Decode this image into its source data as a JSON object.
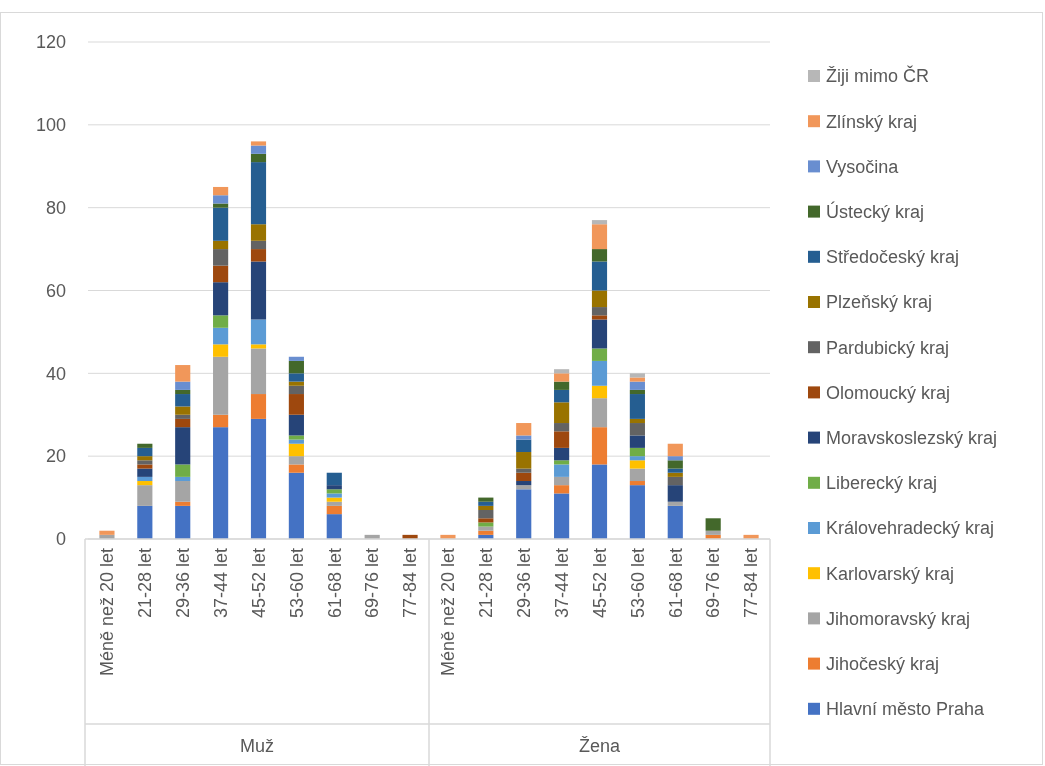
{
  "chart_data": {
    "type": "bar",
    "stacked": true,
    "categories": [
      "Méně než 20 let",
      "21-28 let",
      "29-36 let",
      "37-44 let",
      "45-52 let",
      "53-60 let",
      "61-68 let",
      "69-76 let",
      "77-84 let",
      "Méně než 20 let",
      "21-28 let",
      "29-36 let",
      "37-44 let",
      "45-52 let",
      "53-60 let",
      "61-68 let",
      "69-76 let",
      "77-84 let"
    ],
    "annotations": [
      "Muž",
      "Žena"
    ],
    "ylim": [
      0,
      120
    ],
    "yticks": [
      0,
      20,
      40,
      60,
      80,
      100,
      120
    ],
    "grid": "y",
    "legend": "right",
    "series": [
      {
        "name": "Hlavní město Praha",
        "color": "#4472c4",
        "values": [
          0,
          8,
          8,
          27,
          29,
          16,
          6,
          0,
          0,
          0,
          1,
          12,
          11,
          18,
          13,
          8,
          0,
          0
        ]
      },
      {
        "name": "Jihočeský kraj",
        "color": "#ed7d31",
        "values": [
          0,
          0,
          1,
          3,
          6,
          2,
          2,
          0,
          0,
          0,
          1,
          0,
          2,
          9,
          1,
          0,
          1,
          0
        ]
      },
      {
        "name": "Jihomoravský kraj",
        "color": "#a5a5a5",
        "values": [
          1,
          5,
          5,
          14,
          11,
          2,
          1,
          1,
          0,
          0,
          1,
          1,
          2,
          7,
          3,
          1,
          1,
          0
        ]
      },
      {
        "name": "Karlovarský kraj",
        "color": "#ffc000",
        "values": [
          0,
          1,
          0,
          3,
          1,
          3,
          1,
          0,
          0,
          0,
          0,
          0,
          0,
          3,
          2,
          0,
          0,
          0
        ]
      },
      {
        "name": "Královehradecký kraj",
        "color": "#5b9bd5",
        "values": [
          0,
          1,
          1,
          4,
          6,
          1,
          1,
          0,
          0,
          0,
          0,
          0,
          3,
          6,
          1,
          0,
          0,
          0
        ]
      },
      {
        "name": "Liberecký kraj",
        "color": "#70ad47",
        "values": [
          0,
          0,
          3,
          3,
          0,
          1,
          1,
          0,
          0,
          0,
          1,
          0,
          1,
          3,
          2,
          0,
          0,
          0
        ]
      },
      {
        "name": "Moravskoslezský kraj",
        "color": "#264478",
        "values": [
          0,
          2,
          9,
          8,
          14,
          5,
          1,
          0,
          0,
          0,
          0,
          1,
          3,
          7,
          3,
          4,
          0,
          0
        ]
      },
      {
        "name": "Olomoucký kraj",
        "color": "#9e480e",
        "values": [
          0,
          1,
          2,
          4,
          3,
          5,
          0,
          0,
          1,
          0,
          1,
          2,
          4,
          1,
          0,
          0,
          0,
          0
        ]
      },
      {
        "name": "Pardubický kraj",
        "color": "#636363",
        "values": [
          0,
          1,
          1,
          4,
          2,
          2,
          0,
          0,
          0,
          0,
          2,
          1,
          2,
          2,
          3,
          2,
          0,
          0
        ]
      },
      {
        "name": "Plzeňský kraj",
        "color": "#997300",
        "values": [
          0,
          1,
          2,
          2,
          4,
          1,
          0,
          0,
          0,
          0,
          1,
          4,
          5,
          4,
          1,
          1,
          0,
          0
        ]
      },
      {
        "name": "Středočeský kraj",
        "color": "#255e91",
        "values": [
          0,
          2,
          3,
          8,
          15,
          2,
          3,
          0,
          0,
          0,
          1,
          3,
          3,
          7,
          6,
          1,
          0,
          0
        ]
      },
      {
        "name": "Ústecký kraj",
        "color": "#43682b",
        "values": [
          0,
          1,
          1,
          1,
          2,
          3,
          0,
          0,
          0,
          0,
          1,
          0,
          2,
          3,
          1,
          2,
          3,
          0
        ]
      },
      {
        "name": "Vysočina",
        "color": "#698ed0",
        "values": [
          0,
          0,
          2,
          2,
          2,
          1,
          0,
          0,
          0,
          0,
          0,
          1,
          0,
          0,
          2,
          1,
          0,
          0
        ]
      },
      {
        "name": "Zlínský kraj",
        "color": "#f1975a",
        "values": [
          1,
          0,
          4,
          2,
          1,
          0,
          0,
          0,
          0,
          1,
          0,
          3,
          2,
          6,
          1,
          3,
          0,
          1
        ]
      },
      {
        "name": "Žiji mimo ČR",
        "color": "#b7b7b7",
        "values": [
          0,
          0,
          0,
          0,
          0,
          0,
          0,
          0,
          0,
          0,
          0,
          0,
          1,
          1,
          1,
          0,
          0,
          0
        ]
      }
    ]
  }
}
